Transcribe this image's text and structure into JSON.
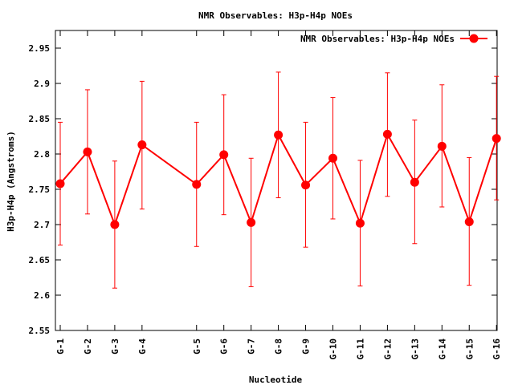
{
  "chart_data": {
    "type": "line",
    "title": "NMR Observables: H3p-H4p NOEs",
    "xlabel": "Nucleotide",
    "ylabel": "H3p-H4p (Angstroms)",
    "ylim": [
      2.55,
      2.975
    ],
    "yticks": [
      "2.55",
      "2.6",
      "2.65",
      "2.7",
      "2.75",
      "2.8",
      "2.85",
      "2.9",
      "2.95"
    ],
    "xlim": [
      0,
      16.1
    ],
    "grid": false,
    "legend_position": "top-right",
    "color": "#ff0000",
    "series": [
      {
        "name": "NMR Observables: H3p-H4p NOEs",
        "points": [
          {
            "label": "G-1",
            "x": 0,
            "y": 2.758,
            "lo": 2.671,
            "hi": 2.845
          },
          {
            "label": "G-2",
            "x": 1,
            "y": 2.803,
            "lo": 2.715,
            "hi": 2.891
          },
          {
            "label": "G-3",
            "x": 2,
            "y": 2.7,
            "lo": 2.61,
            "hi": 2.79
          },
          {
            "label": "G-4",
            "x": 3,
            "y": 2.813,
            "lo": 2.722,
            "hi": 2.903
          },
          {
            "label": "G-5",
            "x": 5,
            "y": 2.757,
            "lo": 2.669,
            "hi": 2.845
          },
          {
            "label": "G-6",
            "x": 6,
            "y": 2.799,
            "lo": 2.714,
            "hi": 2.884
          },
          {
            "label": "G-7",
            "x": 7,
            "y": 2.703,
            "lo": 2.612,
            "hi": 2.794
          },
          {
            "label": "G-8",
            "x": 8,
            "y": 2.827,
            "lo": 2.738,
            "hi": 2.916
          },
          {
            "label": "G-9",
            "x": 9,
            "y": 2.756,
            "lo": 2.668,
            "hi": 2.845
          },
          {
            "label": "G-10",
            "x": 10,
            "y": 2.794,
            "lo": 2.708,
            "hi": 2.88
          },
          {
            "label": "G-11",
            "x": 11,
            "y": 2.702,
            "lo": 2.613,
            "hi": 2.791
          },
          {
            "label": "G-12",
            "x": 12,
            "y": 2.828,
            "lo": 2.74,
            "hi": 2.915
          },
          {
            "label": "G-13",
            "x": 13,
            "y": 2.76,
            "lo": 2.673,
            "hi": 2.848
          },
          {
            "label": "G-14",
            "x": 14,
            "y": 2.811,
            "lo": 2.725,
            "hi": 2.898
          },
          {
            "label": "G-15",
            "x": 15,
            "y": 2.704,
            "lo": 2.614,
            "hi": 2.795
          },
          {
            "label": "G-16",
            "x": 16,
            "y": 2.822,
            "lo": 2.735,
            "hi": 2.91
          }
        ]
      }
    ]
  }
}
